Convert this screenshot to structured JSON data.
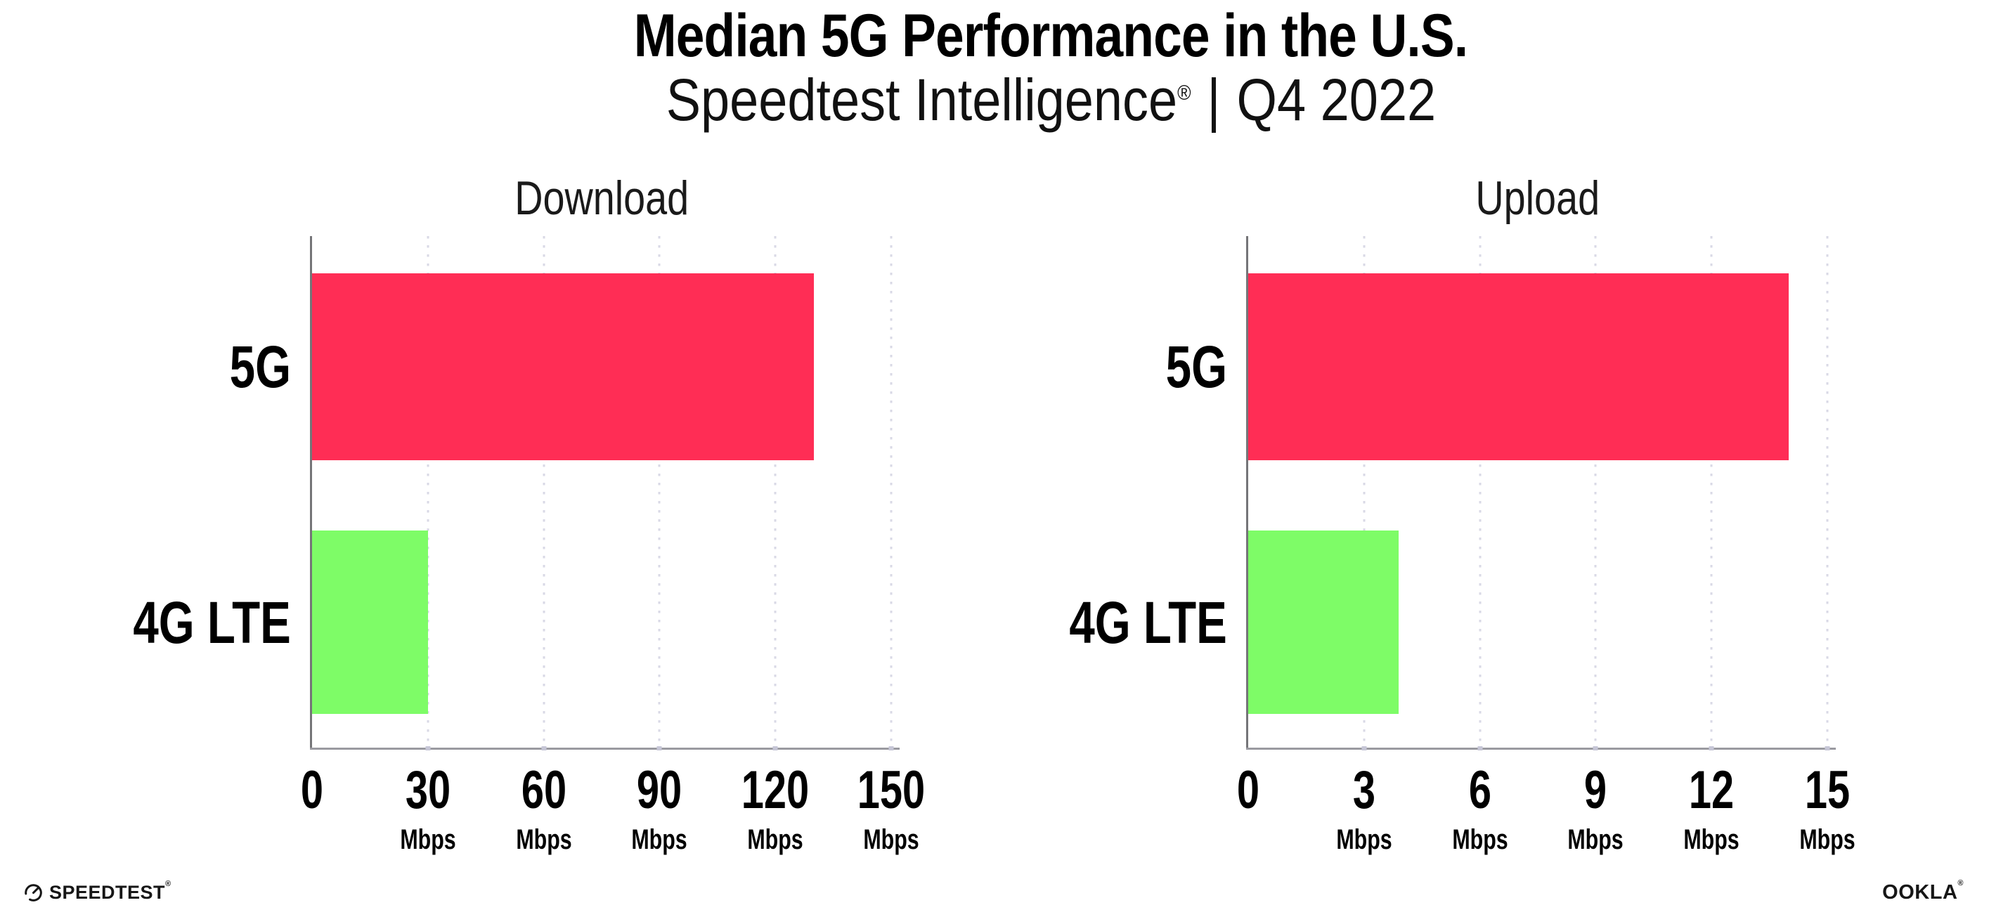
{
  "header": {
    "title": "Median 5G Performance in the U.S.",
    "subtitle": {
      "brand": "Speedtest Intelligence",
      "trademark": "®",
      "separator": "|",
      "period": "Q4 2022"
    }
  },
  "colors": {
    "bar_5g": "#ff2d55",
    "bar_4g_lte": "#7efc67",
    "y_axis_line": "#757578",
    "x_axis_line": "#9a9aa0",
    "gridline": "#d9d9e6",
    "text": "#000000"
  },
  "chart_data": [
    {
      "type": "bar",
      "orientation": "horizontal",
      "title": "Download",
      "unit": "Mbps",
      "categories": [
        "5G",
        "4G LTE"
      ],
      "values": [
        130,
        30
      ],
      "bar_colors": [
        "#ff2d55",
        "#7efc67"
      ],
      "xlim": [
        0,
        150
      ],
      "xticks": [
        0,
        30,
        60,
        90,
        120,
        150
      ],
      "grid": "dotted-vertical-at-ticks",
      "value_labels_shown": false
    },
    {
      "type": "bar",
      "orientation": "horizontal",
      "title": "Upload",
      "unit": "Mbps",
      "categories": [
        "5G",
        "4G LTE"
      ],
      "values": [
        14,
        3.9
      ],
      "bar_colors": [
        "#ff2d55",
        "#7efc67"
      ],
      "xlim": [
        0,
        15
      ],
      "xticks": [
        0,
        3,
        6,
        9,
        12,
        15
      ],
      "grid": "dotted-vertical-at-ticks",
      "value_labels_shown": false
    }
  ],
  "branding": {
    "speedtest": {
      "icon": "speedtest-gauge-icon",
      "wordmark": "SPEEDTEST",
      "trademark": "®"
    },
    "ookla": {
      "wordmark": "OOKLA",
      "trademark": "®"
    }
  }
}
